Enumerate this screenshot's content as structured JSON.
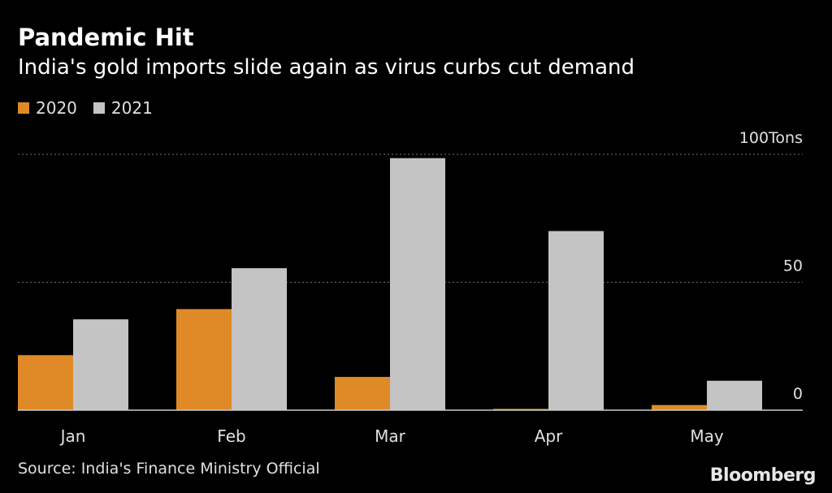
{
  "header": {
    "title": "Pandemic Hit",
    "subtitle": "India's gold imports slide again as virus curbs cut demand"
  },
  "footer": {
    "source": "Source: India's Finance Ministry Official",
    "brand": "Bloomberg"
  },
  "colors": {
    "background": "#000000",
    "series_2020": "#e08a27",
    "series_2021": "#c4c4c4",
    "gridline": "#777777",
    "text": "#ffffff",
    "tick_text": "#e0e0e0"
  },
  "chart_data": {
    "type": "bar",
    "title": "Pandemic Hit",
    "subtitle": "India's gold imports slide again as virus curbs cut demand",
    "categories": [
      "Jan",
      "Feb",
      "Mar",
      "Apr",
      "May"
    ],
    "series": [
      {
        "name": "2020",
        "values": [
          21.5,
          39.5,
          13,
          0.5,
          2
        ]
      },
      {
        "name": "2021",
        "values": [
          35.5,
          55.5,
          98.5,
          70,
          11.5
        ]
      }
    ],
    "xlabel": "",
    "ylabel": "Tons",
    "ylim": [
      0,
      100
    ],
    "yticks": [
      {
        "value": 100,
        "label": "100Tons"
      },
      {
        "value": 50,
        "label": "50"
      },
      {
        "value": 0,
        "label": "0"
      }
    ],
    "grid": true,
    "legend_position": "top-left"
  }
}
